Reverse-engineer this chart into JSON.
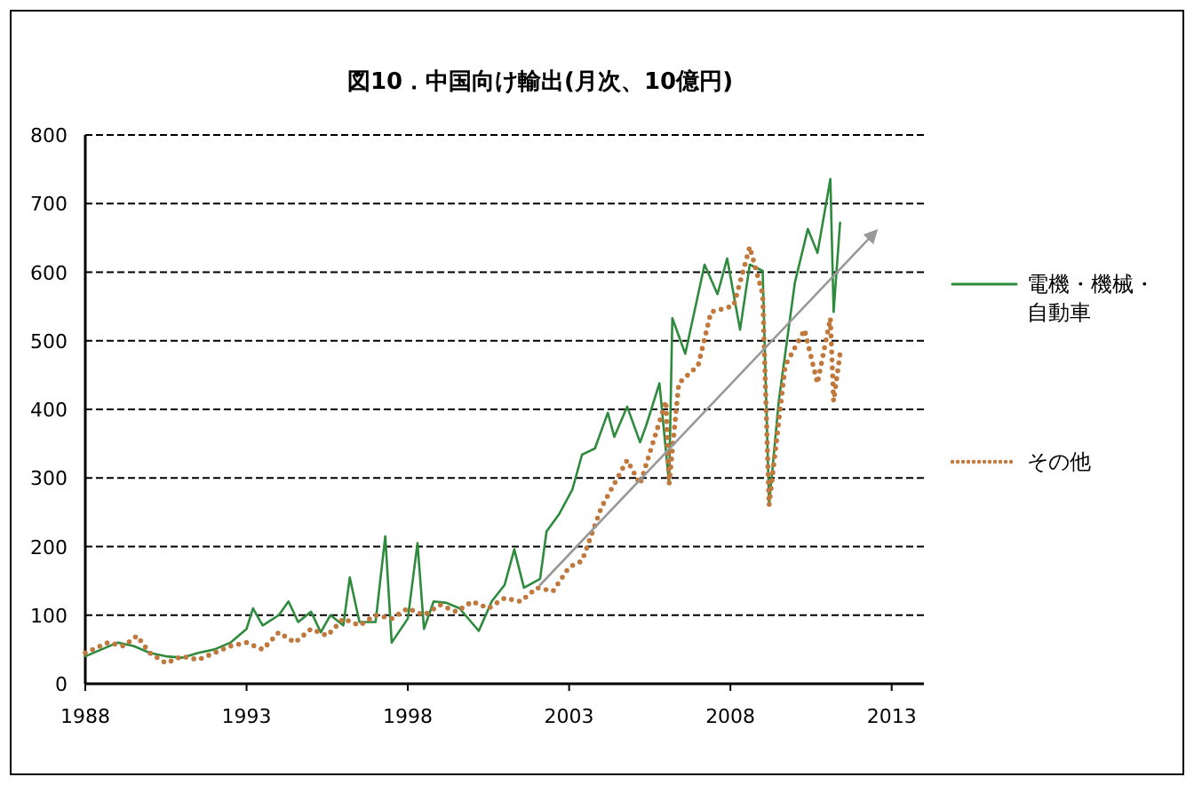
{
  "chart_data": {
    "type": "line",
    "title": "図10．中国向け輸出(月次、10億円)",
    "xlim": [
      1988,
      2014
    ],
    "xticks": [
      1988,
      1993,
      1998,
      2003,
      2008,
      2013
    ],
    "ylim": [
      0,
      800
    ],
    "yticks": [
      0,
      100,
      200,
      300,
      400,
      500,
      600,
      700,
      800
    ],
    "grid": "y",
    "legend": "right",
    "series": [
      {
        "name": "電機・機械・自動車",
        "color": "#2e8b3e",
        "line_style": "solid",
        "x": [
          1988.0,
          1988.5,
          1989.0,
          1989.5,
          1990.0,
          1990.5,
          1991.0,
          1991.5,
          1992.0,
          1992.5,
          1993.0,
          1993.2,
          1993.5,
          1994.0,
          1994.3,
          1994.6,
          1995.0,
          1995.3,
          1995.6,
          1996.0,
          1996.2,
          1996.5,
          1997.0,
          1997.3,
          1997.5,
          1998.0,
          1998.3,
          1998.5,
          1998.8,
          1999.2,
          1999.6,
          2000.2,
          2000.6,
          2001.0,
          2001.3,
          2001.6,
          2002.1,
          2002.3,
          2002.7,
          2003.1,
          2003.4,
          2003.8,
          2004.2,
          2004.4,
          2004.8,
          2005.2,
          2005.4,
          2005.8,
          2006.1,
          2006.2,
          2006.6,
          2007.2,
          2007.6,
          2007.9,
          2008.3,
          2008.6,
          2009.0,
          2009.2,
          2009.5,
          2010.0,
          2010.4,
          2010.7,
          2011.1,
          2011.2,
          2011.4
        ],
        "values": [
          40,
          50,
          60,
          55,
          45,
          40,
          38,
          45,
          50,
          60,
          80,
          110,
          85,
          100,
          120,
          90,
          105,
          75,
          100,
          85,
          155,
          90,
          90,
          215,
          60,
          95,
          205,
          80,
          120,
          118,
          110,
          77,
          120,
          144,
          196,
          140,
          153,
          222,
          248,
          283,
          334,
          343,
          395,
          360,
          404,
          352,
          378,
          438,
          291,
          533,
          481,
          611,
          568,
          620,
          516,
          611,
          602,
          261,
          412,
          585,
          663,
          628,
          736,
          542,
          672
        ]
      },
      {
        "name": "その他",
        "color": "#c0783c",
        "line_style": "dotted",
        "x": [
          1988.0,
          1988.7,
          1989.2,
          1989.6,
          1990.0,
          1990.5,
          1991.0,
          1991.5,
          1992.0,
          1992.5,
          1993.0,
          1993.5,
          1994.0,
          1994.5,
          1995.0,
          1995.5,
          1996.0,
          1996.5,
          1997.0,
          1997.5,
          1998.0,
          1998.5,
          1999.0,
          1999.5,
          2000.0,
          2000.5,
          2001.0,
          2001.5,
          2002.0,
          2002.5,
          2003.0,
          2003.4,
          2004.0,
          2004.8,
          2005.2,
          2006.0,
          2006.1,
          2006.4,
          2007.0,
          2007.4,
          2008.1,
          2008.6,
          2009.0,
          2009.2,
          2009.7,
          2010.3,
          2010.7,
          2011.1,
          2011.2,
          2011.4
        ],
        "values": [
          45,
          60,
          55,
          70,
          45,
          30,
          40,
          35,
          45,
          55,
          60,
          50,
          75,
          60,
          80,
          70,
          95,
          85,
          100,
          95,
          110,
          100,
          115,
          105,
          120,
          110,
          125,
          120,
          140,
          135,
          170,
          179,
          257,
          326,
          291,
          412,
          291,
          438,
          464,
          542,
          551,
          637,
          568,
          260,
          464,
          516,
          438,
          533,
          412,
          481
        ]
      },
      {
        "type": "line",
        "color": "#999999",
        "line_style": "solid",
        "x": [
          2002.1,
          2012.5
        ],
        "values": [
          144,
          659
        ]
      }
    ]
  }
}
